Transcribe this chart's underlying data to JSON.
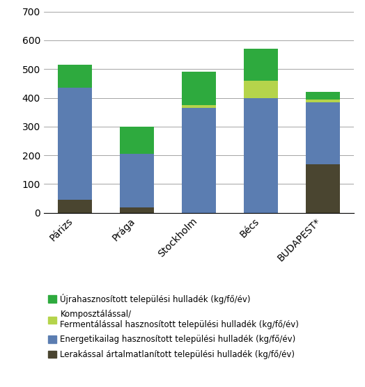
{
  "categories": [
    "Párizs",
    "Prága",
    "Stockholm",
    "Bécs",
    "BUDAPEST*"
  ],
  "lerakassal": [
    45,
    20,
    0,
    0,
    170
  ],
  "energetikailag": [
    390,
    185,
    365,
    400,
    215
  ],
  "komposztallassal": [
    0,
    0,
    10,
    60,
    10
  ],
  "ujrahasznosított": [
    80,
    95,
    115,
    110,
    25
  ],
  "color_lerakassal": "#4a4530",
  "color_energetikailag": "#5b7db1",
  "color_komposztallassal": "#b5d44b",
  "color_ujrahasznosított": "#2eaa3e",
  "legend_ujrahasznosított": "Újrahasznosított települési hulladék (kg/fő/év)",
  "legend_komposztallassal": "Komposztálással/\nFermentálással hasznosított települési hulladék (kg/fő/év)",
  "legend_energetikailag": "Energetikailag hasznosított települési hulladék (kg/fő/év)",
  "legend_lerakassal": "Lerakással ártalmatlanított települési hulladék (kg/fő/év)",
  "ylim": [
    0,
    700
  ],
  "yticks": [
    0,
    100,
    200,
    300,
    400,
    500,
    600,
    700
  ],
  "bar_width": 0.55,
  "figsize": [
    5.24,
    5.56
  ],
  "dpi": 100
}
